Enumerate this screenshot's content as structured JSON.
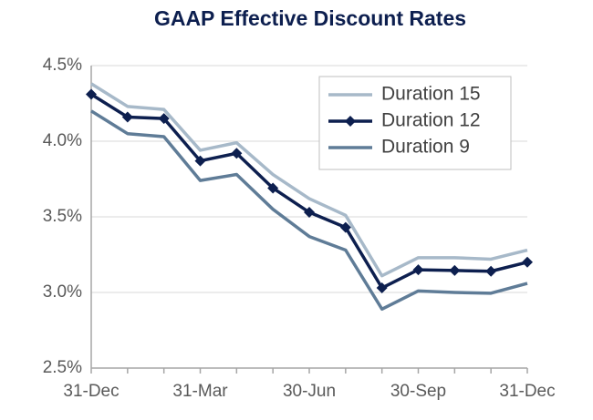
{
  "chart_data": {
    "type": "line",
    "title": "GAAP Effective Discount Rates",
    "categories": [
      "31-Dec",
      null,
      null,
      "31-Mar",
      null,
      null,
      "30-Jun",
      null,
      null,
      "30-Sep",
      null,
      null,
      "31-Dec"
    ],
    "series": [
      {
        "name": "Duration 15",
        "color": "#a7b9c9",
        "values": [
          4.38,
          4.23,
          4.21,
          3.94,
          3.99,
          3.78,
          3.62,
          3.51,
          3.11,
          3.23,
          3.23,
          3.22,
          3.28
        ]
      },
      {
        "name": "Duration 12",
        "color": "#0d1f4f",
        "marker": "diamond",
        "values": [
          4.31,
          4.16,
          4.15,
          3.87,
          3.92,
          3.69,
          3.53,
          3.43,
          3.03,
          3.15,
          3.145,
          3.14,
          3.2
        ]
      },
      {
        "name": "Duration 9",
        "color": "#5f7c97",
        "values": [
          4.2,
          4.05,
          4.03,
          3.74,
          3.78,
          3.55,
          3.37,
          3.28,
          2.89,
          3.01,
          3.0,
          2.995,
          3.06
        ]
      }
    ],
    "ylim": [
      2.5,
      4.5
    ],
    "yticks": [
      {
        "value": 2.5,
        "label": "2.5%"
      },
      {
        "value": 3.0,
        "label": "3.0%"
      },
      {
        "value": 3.5,
        "label": "3.5%"
      },
      {
        "value": 4.0,
        "label": "4.0%"
      },
      {
        "value": 4.5,
        "label": "4.5%"
      }
    ],
    "grid": true,
    "legend": "upper right"
  }
}
